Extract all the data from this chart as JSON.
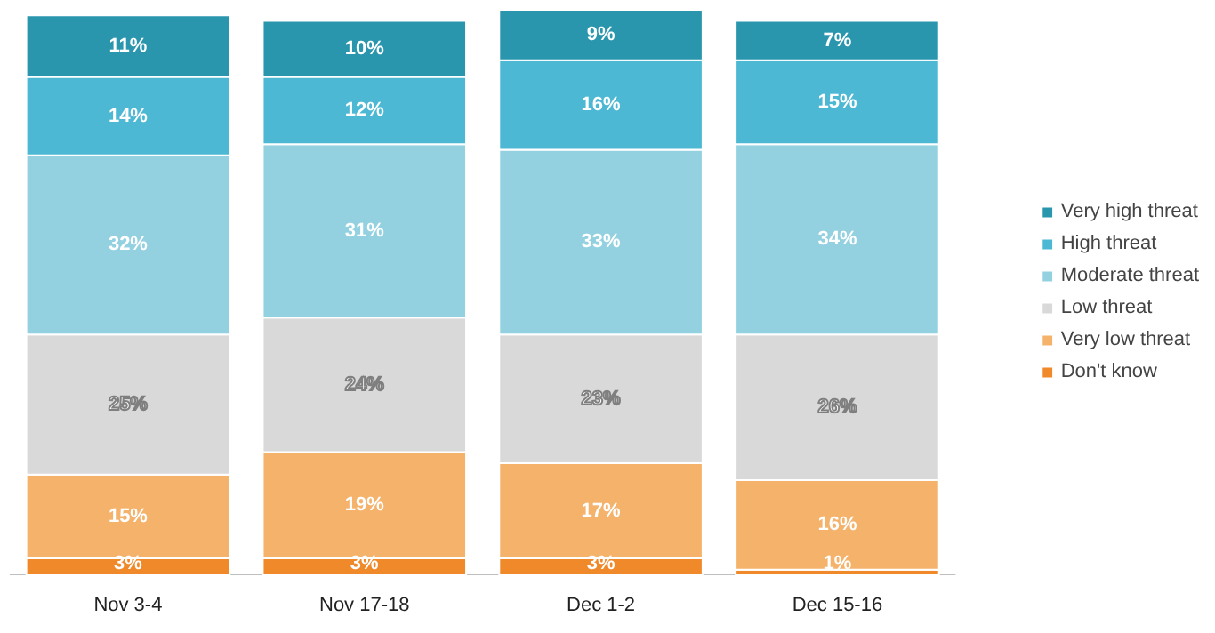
{
  "chart_data": {
    "type": "bar",
    "stacked": true,
    "legend": "right",
    "categories": [
      "Nov 3-4",
      "Nov 17-18",
      "Dec 1-2",
      "Dec 15-16"
    ],
    "series": [
      {
        "name": "Don't know",
        "color": "#f0892a",
        "values": [
          3,
          3,
          3,
          1
        ],
        "value_labels": [
          "3%",
          "3%",
          "3%",
          "1%"
        ]
      },
      {
        "name": "Very low threat",
        "color": "#f5b26b",
        "values": [
          15,
          19,
          17,
          16
        ],
        "value_labels": [
          "15%",
          "19%",
          "17%",
          "16%"
        ]
      },
      {
        "name": "Low threat",
        "color": "#d9d9d9",
        "values": [
          25,
          24,
          23,
          26
        ],
        "value_labels": [
          "25%",
          "24%",
          "23%",
          "26%"
        ]
      },
      {
        "name": "Moderate threat",
        "color": "#93d1e1",
        "values": [
          32,
          31,
          33,
          34
        ],
        "value_labels": [
          "32%",
          "31%",
          "33%",
          "34%"
        ]
      },
      {
        "name": "High threat",
        "color": "#4cb8d4",
        "values": [
          14,
          12,
          16,
          15
        ],
        "value_labels": [
          "14%",
          "12%",
          "16%",
          "15%"
        ]
      },
      {
        "name": "Very high threat",
        "color": "#2a96ae",
        "values": [
          11,
          10,
          9,
          7
        ],
        "value_labels": [
          "11%",
          "10%",
          "9%",
          "7%"
        ]
      }
    ]
  }
}
